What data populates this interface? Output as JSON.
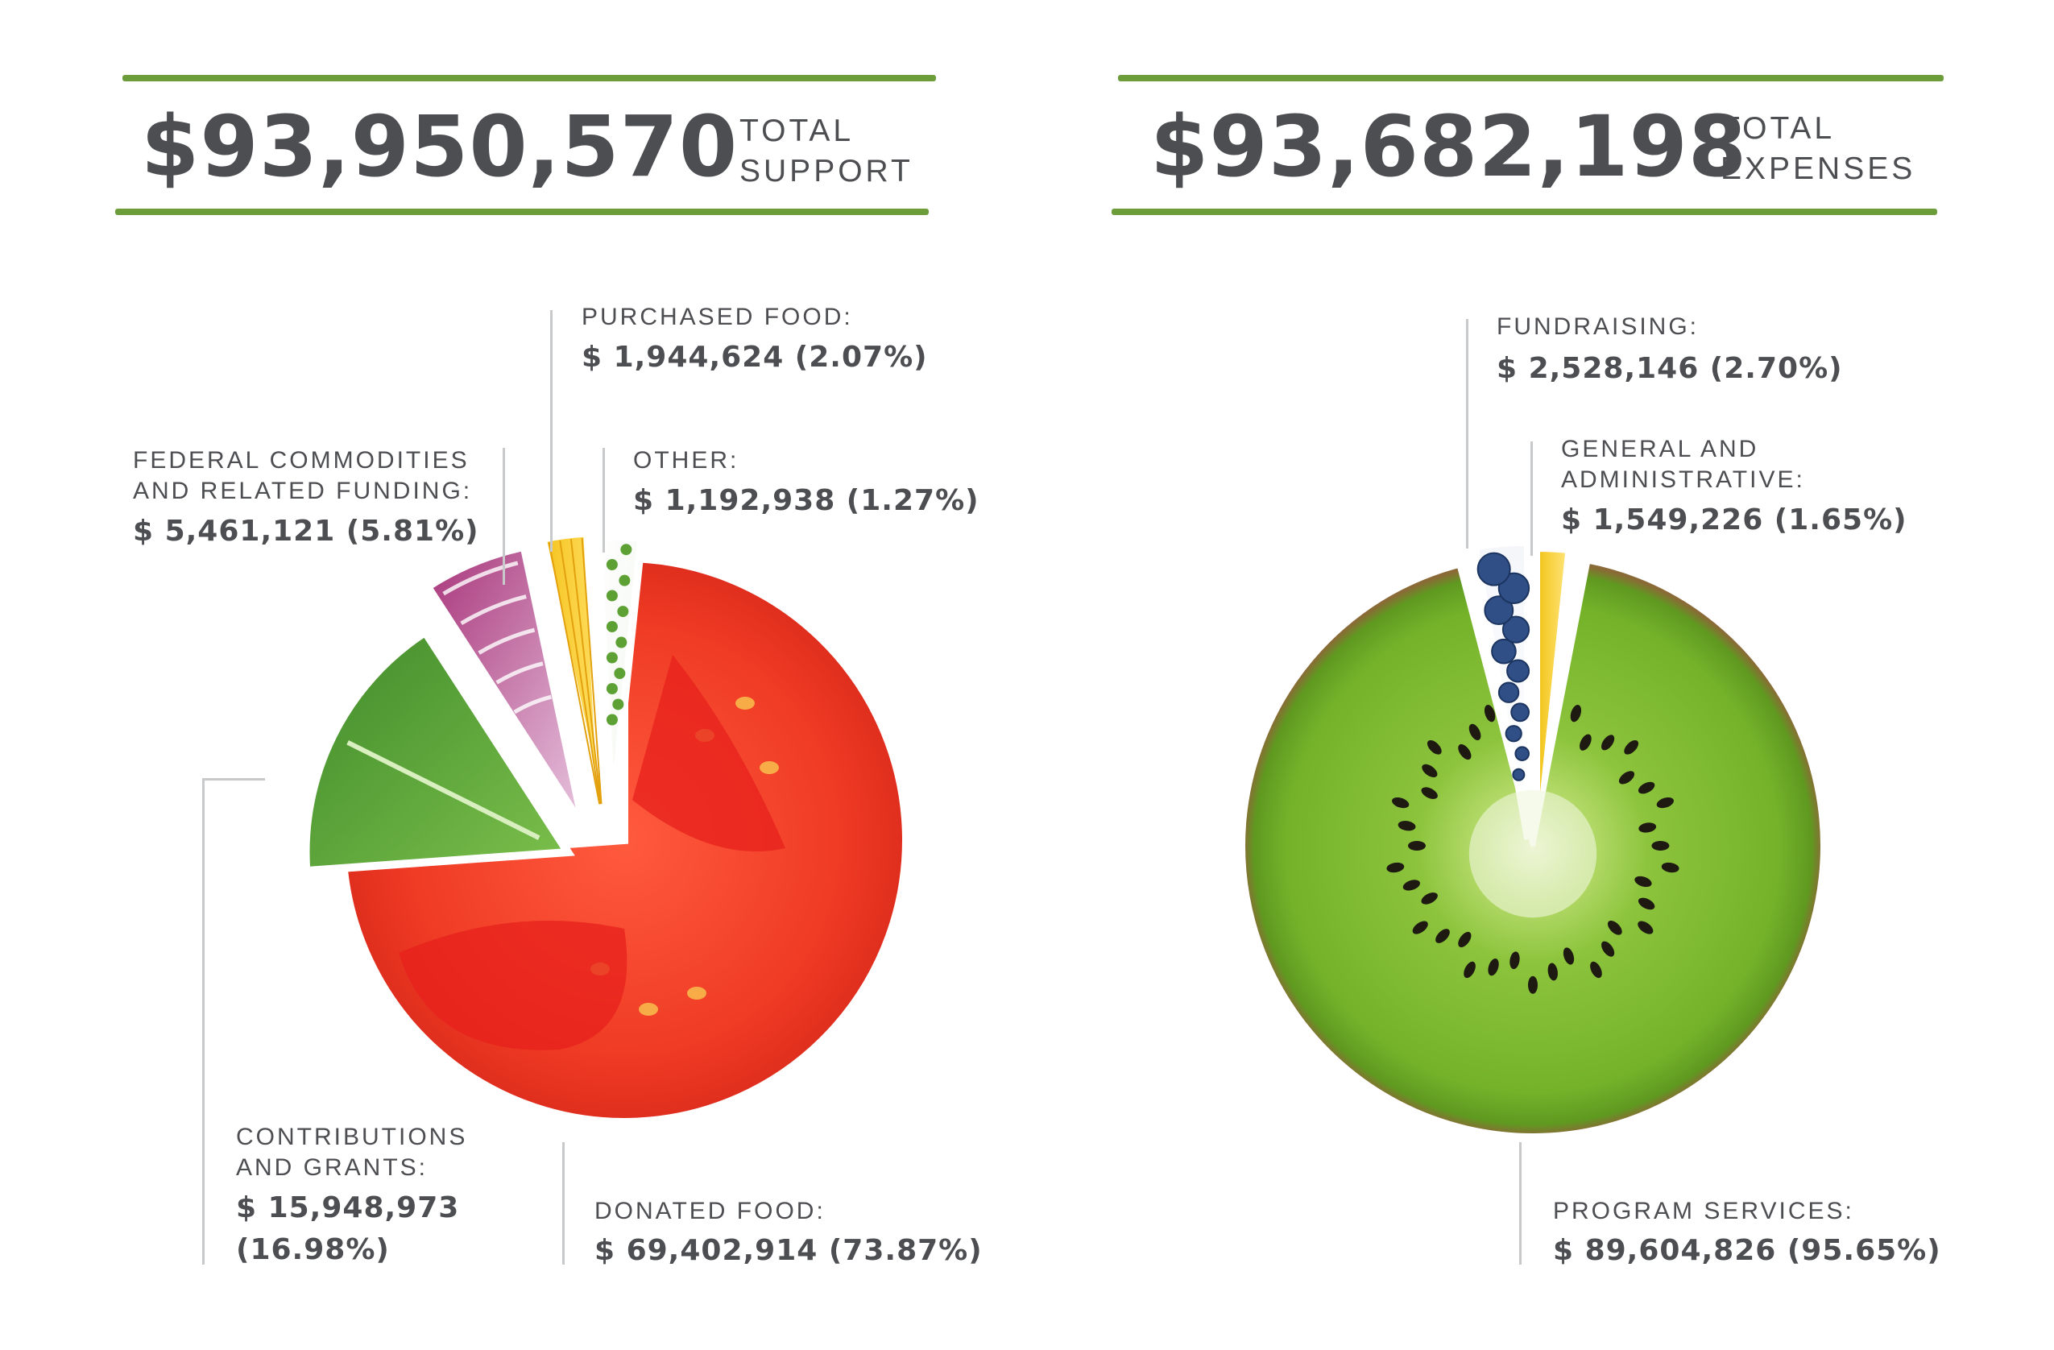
{
  "support": {
    "amount": "$93,950,570",
    "label_line1": "TOTAL",
    "label_line2": "SUPPORT"
  },
  "expenses": {
    "amount": "$93,682,198",
    "label_line1": "TOTAL",
    "label_line2": "EXPENSES"
  },
  "colors": {
    "accent_green": "#6d9c3a",
    "text": "#4d4e52",
    "leader": "#c8c9cb"
  },
  "chart_data": [
    {
      "type": "pie",
      "slices": [
        {
          "key": "donated_food",
          "label_lines": [
            "DONATED FOOD:"
          ],
          "value": 69402914,
          "percent": 73.87,
          "value_lines": [
            "$ 69,402,914 (73.87%)"
          ],
          "texture": "tomato"
        },
        {
          "key": "contributions",
          "label_lines": [
            "CONTRIBUTIONS",
            "AND GRANTS:"
          ],
          "value": 15948973,
          "percent": 16.98,
          "value_lines": [
            "$ 15,948,973",
            "(16.98%)"
          ],
          "texture": "lettuce"
        },
        {
          "key": "federal",
          "label_lines": [
            "FEDERAL COMMODITIES",
            "AND RELATED FUNDING:"
          ],
          "value": 5461121,
          "percent": 5.81,
          "value_lines": [
            "$ 5,461,121 (5.81%)"
          ],
          "texture": "onion"
        },
        {
          "key": "purchased_food",
          "label_lines": [
            "PURCHASED FOOD:"
          ],
          "value": 1944624,
          "percent": 2.07,
          "value_lines": [
            "$ 1,944,624 (2.07%)"
          ],
          "texture": "pasta"
        },
        {
          "key": "other",
          "label_lines": [
            "OTHER:"
          ],
          "value": 1192938,
          "percent": 1.27,
          "value_lines": [
            "$ 1,192,938 (1.27%)"
          ],
          "texture": "peas"
        }
      ]
    },
    {
      "type": "pie",
      "slices": [
        {
          "key": "program",
          "label_lines": [
            "PROGRAM SERVICES:"
          ],
          "value": 89604826,
          "percent": 95.65,
          "value_lines": [
            "$ 89,604,826 (95.65%)"
          ],
          "texture": "kiwi"
        },
        {
          "key": "fundraising",
          "label_lines": [
            "FUNDRAISING:"
          ],
          "value": 2528146,
          "percent": 2.7,
          "value_lines": [
            "$  2,528,146 (2.70%)"
          ],
          "texture": "blueberry"
        },
        {
          "key": "general",
          "label_lines": [
            "GENERAL AND",
            "ADMINISTRATIVE:"
          ],
          "value": 1549226,
          "percent": 1.65,
          "value_lines": [
            "$ 1,549,226 (1.65%)"
          ],
          "texture": "pineapple"
        }
      ]
    }
  ]
}
